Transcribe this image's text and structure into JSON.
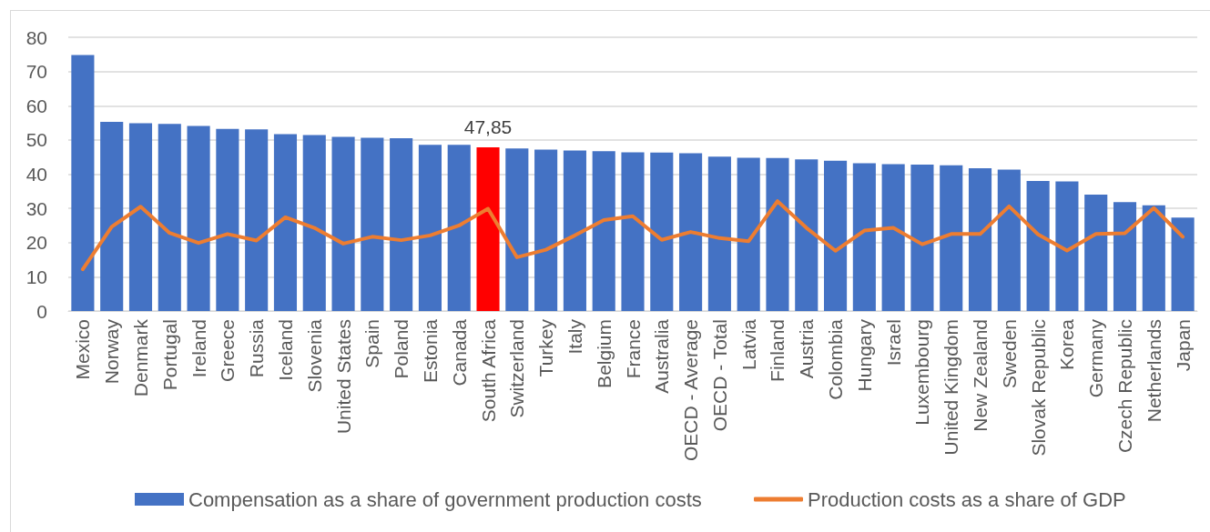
{
  "chart_data": {
    "type": "bar",
    "categories": [
      "Mexico",
      "Norway",
      "Denmark",
      "Portugal",
      "Ireland",
      "Greece",
      "Russia",
      "Iceland",
      "Slovenia",
      "United States",
      "Spain",
      "Poland",
      "Estonia",
      "Canada",
      "South Africa",
      "Switzerland",
      "Turkey",
      "Italy",
      "Belgium",
      "France",
      "Australia",
      "OECD - Average",
      "OECD - Total",
      "Latvia",
      "Finland",
      "Austria",
      "Colombia",
      "Hungary",
      "Israel",
      "Luxembourg",
      "United Kingdom",
      "New Zealand",
      "Sweden",
      "Slovak Republic",
      "Korea",
      "Germany",
      "Czech Republic",
      "Netherlands",
      "Japan"
    ],
    "series": [
      {
        "name": "Compensation as a share of government production costs",
        "color": "#4472c4",
        "colors": [
          "#4472c4",
          "#4472c4",
          "#4472c4",
          "#4472c4",
          "#4472c4",
          "#4472c4",
          "#4472c4",
          "#4472c4",
          "#4472c4",
          "#4472c4",
          "#4472c4",
          "#4472c4",
          "#4472c4",
          "#4472c4",
          "#ff0000",
          "#4472c4",
          "#4472c4",
          "#4472c4",
          "#4472c4",
          "#4472c4",
          "#4472c4",
          "#4472c4",
          "#4472c4",
          "#4472c4",
          "#4472c4",
          "#4472c4",
          "#4472c4",
          "#4472c4",
          "#4472c4",
          "#4472c4",
          "#4472c4",
          "#4472c4",
          "#4472c4",
          "#4472c4",
          "#4472c4",
          "#4472c4",
          "#4472c4",
          "#4472c4",
          "#4472c4"
        ],
        "values": [
          74.8,
          55.3,
          54.9,
          54.7,
          54.1,
          53.2,
          53.1,
          51.7,
          51.4,
          50.9,
          50.6,
          50.5,
          48.6,
          48.6,
          47.85,
          47.5,
          47.2,
          46.9,
          46.7,
          46.4,
          46.3,
          46.1,
          45.1,
          44.8,
          44.7,
          44.3,
          43.9,
          43.2,
          42.9,
          42.8,
          42.6,
          41.7,
          41.3,
          38.0,
          37.9,
          34.0,
          31.8,
          30.9,
          27.3
        ],
        "value_labels": [
          null,
          null,
          null,
          null,
          null,
          null,
          null,
          null,
          null,
          null,
          null,
          null,
          null,
          null,
          "47,85",
          null,
          null,
          null,
          null,
          null,
          null,
          null,
          null,
          null,
          null,
          null,
          null,
          null,
          null,
          null,
          null,
          null,
          null,
          null,
          null,
          null,
          null,
          null,
          null
        ]
      },
      {
        "name": "Production costs as a share of GDP",
        "type": "line",
        "color": "#ed7d31",
        "values": [
          12.2,
          24.6,
          30.5,
          22.8,
          19.9,
          22.5,
          20.6,
          27.4,
          24.3,
          19.7,
          21.7,
          20.7,
          22.1,
          25.0,
          29.9,
          15.7,
          17.9,
          22.1,
          26.6,
          27.7,
          20.8,
          23.1,
          21.3,
          20.4,
          32.1,
          24.3,
          17.6,
          23.5,
          24.3,
          19.5,
          22.5,
          22.5,
          30.6,
          22.4,
          17.7,
          22.5,
          22.7,
          30.1,
          21.7
        ]
      }
    ],
    "ylim": [
      0,
      80
    ],
    "yticks": [
      0,
      10,
      20,
      30,
      40,
      50,
      60,
      70,
      80
    ],
    "grid": "y",
    "legend": "bottom",
    "marker": "none",
    "line_style": "solid"
  }
}
